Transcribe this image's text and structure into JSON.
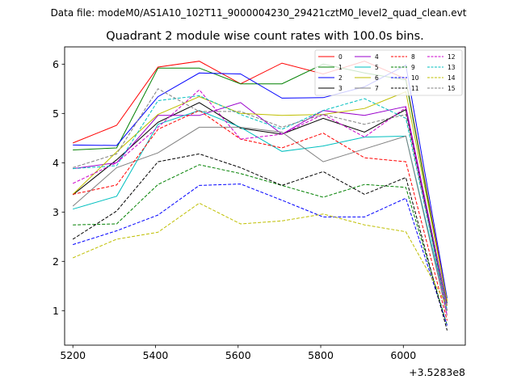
{
  "chart_data": {
    "type": "line",
    "suptitle": "Data file: modeM0/AS1A10_102T11_9000004230_29421cztM0_level2_quad_clean.evt",
    "title": "Quadrant 2 module wise count rates with 100.0s bins.",
    "xlabel": "",
    "ylabel": "",
    "x_offset_label": "+3.5283e8",
    "xlim": [
      5180,
      6150
    ],
    "ylim": [
      0.3,
      6.35
    ],
    "x_ticks": [
      "5200",
      "5400",
      "5600",
      "5800",
      "6000"
    ],
    "y_ticks": [
      "1",
      "2",
      "3",
      "4",
      "5",
      "6"
    ],
    "grid": false,
    "legend_position": "top-right",
    "legend_columns": 4,
    "x": [
      5200,
      5306,
      5406,
      5506,
      5606,
      5706,
      5806,
      5906,
      6006,
      6106
    ],
    "series": [
      {
        "name": "0",
        "color": "#ff0000",
        "dashed": false,
        "values": [
          4.4,
          4.76,
          5.94,
          6.06,
          5.6,
          6.02,
          5.8,
          6.06,
          5.7,
          1.2
        ]
      },
      {
        "name": "1",
        "color": "#008000",
        "dashed": false,
        "values": [
          4.26,
          4.3,
          5.92,
          5.92,
          5.6,
          5.6,
          6.0,
          5.82,
          5.68,
          1.15
        ]
      },
      {
        "name": "2",
        "color": "#0000ff",
        "dashed": false,
        "values": [
          4.36,
          4.35,
          5.34,
          5.82,
          5.8,
          5.31,
          5.32,
          5.54,
          5.98,
          1.25
        ]
      },
      {
        "name": "3",
        "color": "#000000",
        "dashed": false,
        "values": [
          3.35,
          4.06,
          4.82,
          5.22,
          4.7,
          4.58,
          4.9,
          4.62,
          5.08,
          1.0
        ]
      },
      {
        "name": "4",
        "color": "#9900cc",
        "dashed": false,
        "values": [
          3.88,
          4.0,
          4.96,
          4.96,
          5.22,
          4.58,
          5.06,
          4.96,
          5.14,
          1.1
        ]
      },
      {
        "name": "5",
        "color": "#00bfbf",
        "dashed": false,
        "values": [
          3.06,
          3.32,
          4.78,
          5.06,
          4.72,
          4.23,
          4.34,
          4.52,
          4.54,
          1.0
        ]
      },
      {
        "name": "6",
        "color": "#bfbf00",
        "dashed": false,
        "values": [
          3.36,
          4.22,
          4.98,
          5.34,
          5.0,
          4.96,
          4.98,
          5.1,
          5.44,
          1.2
        ]
      },
      {
        "name": "7",
        "color": "#808080",
        "dashed": false,
        "values": [
          3.12,
          3.9,
          4.2,
          4.72,
          4.72,
          4.62,
          4.02,
          4.28,
          4.54,
          0.9
        ]
      },
      {
        "name": "8",
        "color": "#ff0000",
        "dashed": true,
        "values": [
          3.36,
          3.55,
          4.68,
          5.06,
          4.48,
          4.3,
          4.6,
          4.1,
          4.02,
          0.8
        ]
      },
      {
        "name": "9",
        "color": "#008000",
        "dashed": true,
        "values": [
          2.74,
          2.76,
          3.56,
          3.96,
          3.78,
          3.54,
          3.3,
          3.56,
          3.5,
          0.7
        ]
      },
      {
        "name": "10",
        "color": "#0000ff",
        "dashed": true,
        "values": [
          2.34,
          2.62,
          2.94,
          3.54,
          3.57,
          3.24,
          2.9,
          2.9,
          3.28,
          0.7
        ]
      },
      {
        "name": "11",
        "color": "#000000",
        "dashed": true,
        "values": [
          2.45,
          3.02,
          4.02,
          4.18,
          3.9,
          3.54,
          3.82,
          3.36,
          3.7,
          0.6
        ]
      },
      {
        "name": "12",
        "color": "#cc00cc",
        "dashed": true,
        "values": [
          3.58,
          4.0,
          4.72,
          5.48,
          4.48,
          4.58,
          4.98,
          4.52,
          5.12,
          0.9
        ]
      },
      {
        "name": "13",
        "color": "#00bfbf",
        "dashed": true,
        "values": [
          3.88,
          3.94,
          5.26,
          5.36,
          4.98,
          4.68,
          5.06,
          5.3,
          4.9,
          1.0
        ]
      },
      {
        "name": "14",
        "color": "#bfbf00",
        "dashed": true,
        "values": [
          2.07,
          2.45,
          2.59,
          3.18,
          2.76,
          2.82,
          2.96,
          2.74,
          2.6,
          1.1
        ]
      },
      {
        "name": "15",
        "color": "#808080",
        "dashed": true,
        "values": [
          3.9,
          4.18,
          5.5,
          5.04,
          5.04,
          4.72,
          4.98,
          4.78,
          4.98,
          1.0
        ]
      }
    ]
  }
}
